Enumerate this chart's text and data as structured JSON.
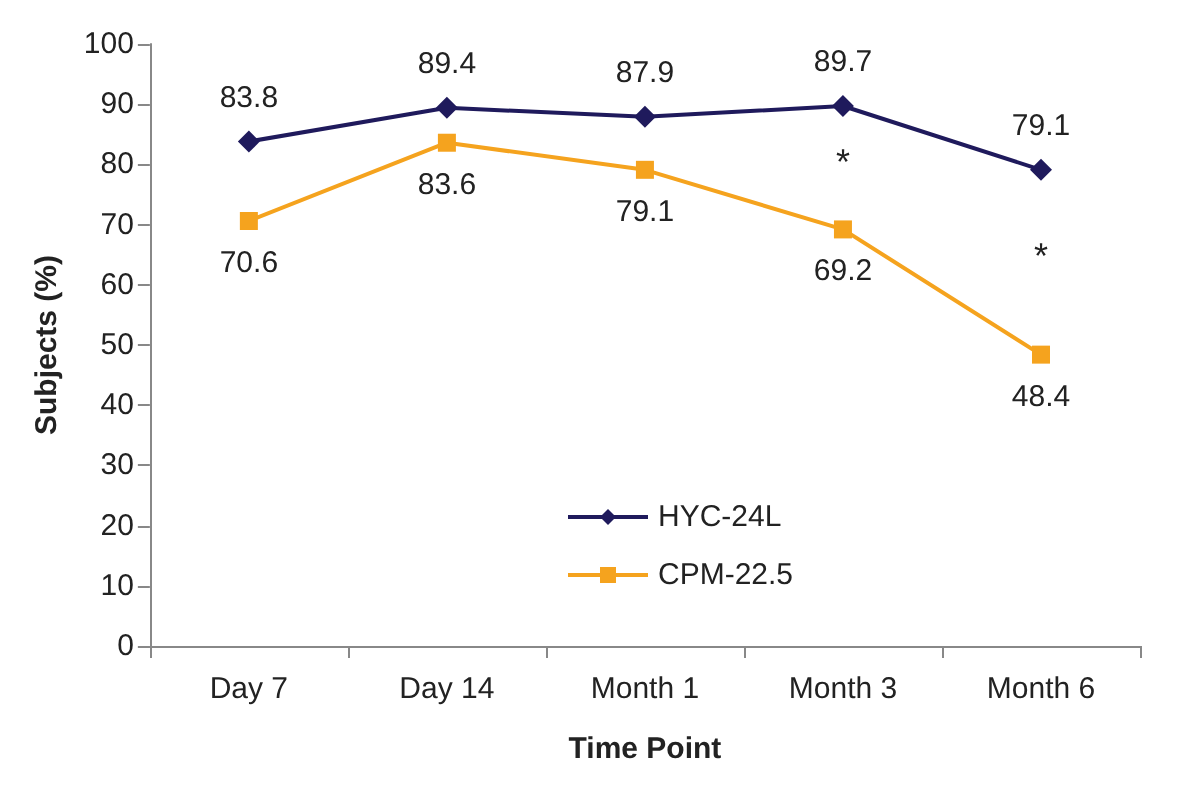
{
  "chart_data": {
    "type": "line",
    "xlabel": "Time Point",
    "ylabel": "Subjects (%)",
    "categories": [
      "Day 7",
      "Day 14",
      "Month 1",
      "Month 3",
      "Month 6"
    ],
    "series": [
      {
        "name": "HYC-24L",
        "color": "#1f1a5c",
        "marker": "diamond",
        "values": [
          83.8,
          89.4,
          87.9,
          89.7,
          79.1
        ]
      },
      {
        "name": "CPM-22.5",
        "color": "#f5a31e",
        "marker": "square",
        "values": [
          70.6,
          83.6,
          79.1,
          69.2,
          48.4
        ]
      }
    ],
    "ylim": [
      0,
      100
    ],
    "yticks": [
      0,
      10,
      20,
      30,
      40,
      50,
      60,
      70,
      80,
      90,
      100
    ],
    "grid": false,
    "legend": "bottom",
    "data_labels": true,
    "annotations": [
      "*",
      "*"
    ]
  }
}
